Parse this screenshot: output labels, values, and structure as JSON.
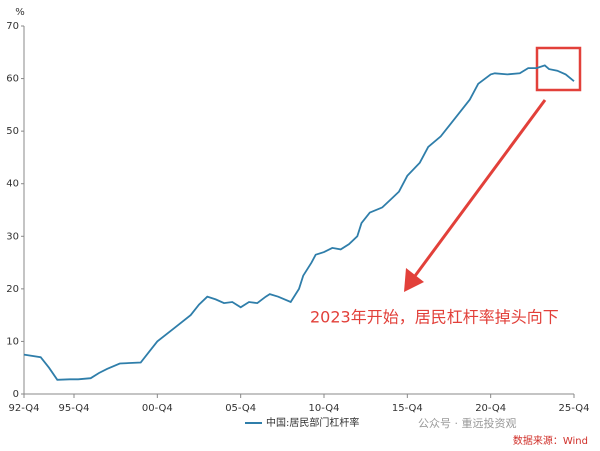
{
  "chart_data": {
    "type": "line",
    "unit_label": "%",
    "x": [
      1992.75,
      1993.75,
      1994.25,
      1994.75,
      1995.5,
      1996,
      1996.75,
      1997.25,
      1997.75,
      1998.5,
      1999.75,
      2000.25,
      2000.75,
      2001.75,
      2002.75,
      2003.25,
      2003.75,
      2004.25,
      2004.75,
      2005.25,
      2005.75,
      2006.25,
      2006.75,
      2007.25,
      2007.5,
      2008,
      2008.75,
      2009.25,
      2009.5,
      2010,
      2010.25,
      2010.75,
      2011.25,
      2011.75,
      2012.25,
      2012.75,
      2013,
      2013.5,
      2014.25,
      2014.75,
      2015.25,
      2015.75,
      2016.5,
      2017,
      2017.75,
      2018.25,
      2018.75,
      2019.5,
      2020,
      2020.75,
      2021,
      2021.75,
      2022.5,
      2023,
      2023.5,
      2024,
      2024.25,
      2024.75,
      2025.25,
      2025.75
    ],
    "series": [
      {
        "name": "中国:居民部门杠杆率",
        "color": "#2f7eaa",
        "values": [
          7.5,
          7,
          5,
          2.7,
          2.8,
          2.8,
          3.0,
          4.0,
          4.8,
          5.8,
          6.0,
          8,
          10,
          12.5,
          15,
          17,
          18.5,
          18,
          17.3,
          17.5,
          16.5,
          17.5,
          17.3,
          18.5,
          19,
          18.5,
          17.5,
          20,
          22.5,
          25,
          26.5,
          27,
          27.8,
          27.5,
          28.5,
          30,
          32.5,
          34.5,
          35.5,
          37,
          38.5,
          41.5,
          44,
          47,
          49,
          51,
          53,
          56,
          59,
          60.8,
          61,
          60.8,
          61,
          62,
          62,
          62.5,
          61.8,
          61.5,
          60.8,
          59.5
        ]
      }
    ],
    "xlim": [
      1992.75,
      2025.75
    ],
    "xticks": [
      {
        "value": 1992.75,
        "label": "92-Q4"
      },
      {
        "value": 1995.75,
        "label": "95-Q4"
      },
      {
        "value": 2000.75,
        "label": "00-Q4"
      },
      {
        "value": 2005.75,
        "label": "05-Q4"
      },
      {
        "value": 2010.75,
        "label": "10-Q4"
      },
      {
        "value": 2015.75,
        "label": "15-Q4"
      },
      {
        "value": 2020.75,
        "label": "20-Q4"
      },
      {
        "value": 2025.75,
        "label": "25-Q4"
      }
    ],
    "ylim": [
      0,
      70
    ],
    "yticks": [
      0,
      10,
      20,
      30,
      40,
      50,
      60,
      70
    ],
    "annotation": "2023年开始，居民杠杆率掉头向下",
    "watermark": "公众号 · 重远投资观",
    "source": "数据来源：Wind"
  }
}
